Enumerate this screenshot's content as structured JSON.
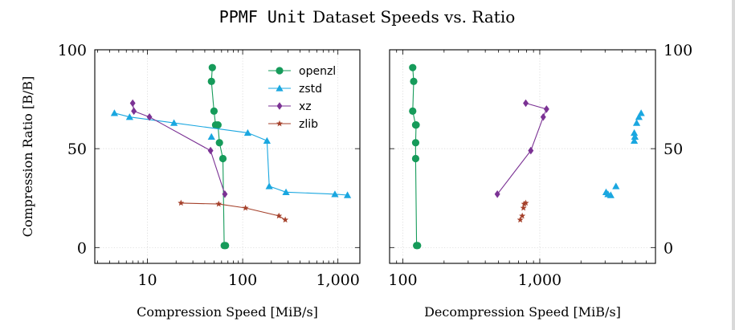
{
  "figure": {
    "title_mono": "PPMF Unit",
    "title_rest": "Dataset Speeds vs. Ratio"
  },
  "chart_data": [
    {
      "type": "scatter",
      "panel": "left",
      "xscale": "log",
      "xlim": [
        2.8,
        1700
      ],
      "ylim": [
        -8,
        100
      ],
      "xticks": [
        10,
        100,
        1000
      ],
      "xtick_labels": [
        "10",
        "100",
        "1,000"
      ],
      "yticks": [
        0,
        50,
        100
      ],
      "ytick_labels": [
        "0",
        "50",
        "100"
      ],
      "xlabel": "Compression Speed [MiB/s]",
      "ylabel": "Compression Ratio [B/B]",
      "grid": true,
      "legend": "top-right",
      "series": [
        {
          "name": "openzl",
          "color": "#169b5a",
          "marker": "circle",
          "line": true,
          "x": [
            48,
            47,
            50,
            52,
            55,
            57,
            62,
            64,
            66
          ],
          "y": [
            91,
            84,
            69,
            62,
            62,
            53,
            45,
            1,
            1
          ]
        },
        {
          "name": "zstd",
          "color": "#1aa7e0",
          "marker": "triangle",
          "line": true,
          "x": [
            4.5,
            6.5,
            19,
            113,
            180,
            190,
            285,
            930,
            1260
          ],
          "y": [
            68,
            66,
            63,
            58,
            54,
            31,
            28,
            27,
            26.5
          ]
        },
        {
          "name": "xz",
          "color": "#7b3294",
          "marker": "diamond",
          "line": true,
          "x": [
            7,
            7.2,
            10.5,
            46,
            65
          ],
          "y": [
            73,
            69,
            66,
            49,
            27
          ]
        },
        {
          "name": "zlib",
          "color": "#a5412b",
          "marker": "star",
          "line": true,
          "x": [
            22.5,
            56,
            107,
            240,
            280
          ],
          "y": [
            22.5,
            22,
            20,
            16,
            14
          ]
        }
      ],
      "extra_points": [
        {
          "series": "zstd",
          "x": 47,
          "y": 56
        }
      ]
    },
    {
      "type": "scatter",
      "panel": "right",
      "xscale": "log",
      "xlim": [
        80,
        7000
      ],
      "ylim": [
        -8,
        100
      ],
      "xticks": [
        100,
        1000
      ],
      "xtick_labels": [
        "100",
        "1,000"
      ],
      "yticks": [
        0,
        50,
        100
      ],
      "ytick_labels": [
        "0",
        "50",
        "100"
      ],
      "xlabel": "Decompression Speed [MiB/s]",
      "ylabel": "",
      "grid": true,
      "series": [
        {
          "name": "openzl",
          "color": "#169b5a",
          "marker": "circle",
          "line": true,
          "x": [
            118,
            120,
            118,
            124,
            125,
            124,
            124,
            126,
            128
          ],
          "y": [
            91,
            84,
            69,
            62,
            62,
            53,
            45,
            1,
            1
          ]
        },
        {
          "name": "zstd",
          "color": "#1aa7e0",
          "marker": "triangle",
          "line": false,
          "x": [
            5500,
            5300,
            5100,
            4900,
            4950,
            4900,
            4950,
            3600,
            3050,
            3150,
            3300
          ],
          "y": [
            68,
            66,
            63,
            58,
            56,
            54,
            56,
            31,
            28,
            27,
            26.5
          ]
        },
        {
          "name": "xz",
          "color": "#7b3294",
          "marker": "diamond",
          "line": true,
          "x": [
            790,
            1120,
            1060,
            860,
            490
          ],
          "y": [
            73,
            70,
            66,
            49,
            27
          ]
        },
        {
          "name": "zlib",
          "color": "#a5412b",
          "marker": "star",
          "line": false,
          "x": [
            790,
            770,
            760,
            745,
            720
          ],
          "y": [
            22.5,
            22,
            20,
            16,
            14
          ]
        }
      ]
    }
  ]
}
